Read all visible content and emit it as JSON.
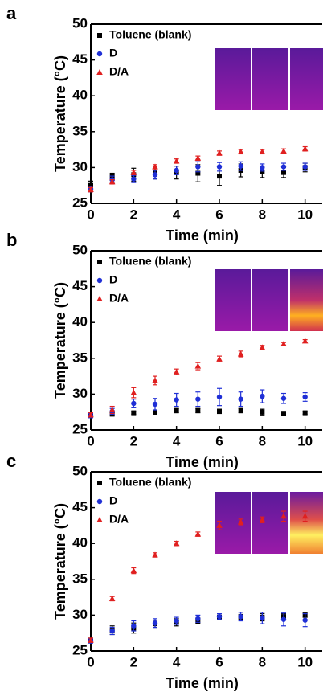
{
  "chart_data": [
    {
      "type": "scatter",
      "panel_label": "a",
      "x_label": "Time (min)",
      "y_label": "Temperature (°C)",
      "x": [
        0,
        1,
        2,
        3,
        4,
        5,
        6,
        7,
        8,
        9,
        10
      ],
      "xlim": [
        0,
        10.8
      ],
      "ylim": [
        25,
        50
      ],
      "xticks": [
        0,
        2,
        4,
        6,
        8,
        10
      ],
      "yticks": [
        25,
        30,
        35,
        40,
        45,
        50
      ],
      "grid": false,
      "legend": "upper left",
      "series": [
        {
          "name": "Toluene (blank)",
          "color": "#000000",
          "marker": "square",
          "values": [
            27.5,
            28.7,
            29.0,
            29.2,
            29.3,
            29.2,
            28.8,
            29.6,
            29.4,
            29.3,
            30.0
          ],
          "errors": [
            0.6,
            0.5,
            0.9,
            0.8,
            0.9,
            1.2,
            1.3,
            0.9,
            0.8,
            0.7,
            0.6
          ]
        },
        {
          "name": "D",
          "color": "#1f2fd6",
          "marker": "circle",
          "values": [
            27.0,
            28.3,
            28.4,
            29.0,
            29.6,
            30.1,
            30.1,
            30.2,
            30.0,
            30.1,
            30.1
          ],
          "errors": [
            0.4,
            0.5,
            0.5,
            0.6,
            0.6,
            0.7,
            0.6,
            0.6,
            0.5,
            0.5,
            0.5
          ]
        },
        {
          "name": "D/A",
          "color": "#e02020",
          "marker": "triangle",
          "values": [
            26.9,
            28.0,
            29.3,
            30.1,
            30.9,
            31.3,
            32.0,
            32.2,
            32.2,
            32.3,
            32.6
          ],
          "errors": [
            0.3,
            0.3,
            0.3,
            0.3,
            0.3,
            0.3,
            0.3,
            0.3,
            0.3,
            0.3,
            0.3
          ]
        }
      ]
    },
    {
      "type": "scatter",
      "panel_label": "b",
      "x_label": "Time (min)",
      "y_label": "Temperature (°C)",
      "x": [
        0,
        1,
        2,
        3,
        4,
        5,
        6,
        7,
        8,
        9,
        10
      ],
      "xlim": [
        0,
        10.8
      ],
      "ylim": [
        25,
        50
      ],
      "xticks": [
        0,
        2,
        4,
        6,
        8,
        10
      ],
      "yticks": [
        25,
        30,
        35,
        40,
        45,
        50
      ],
      "grid": false,
      "legend": "upper left",
      "series": [
        {
          "name": "Toluene (blank)",
          "color": "#000000",
          "marker": "square",
          "values": [
            27.0,
            27.2,
            27.4,
            27.5,
            27.7,
            27.7,
            27.6,
            27.7,
            27.5,
            27.3,
            27.4
          ],
          "errors": [
            0.2,
            0.2,
            0.2,
            0.3,
            0.3,
            0.3,
            0.3,
            0.3,
            0.4,
            0.3,
            0.2
          ]
        },
        {
          "name": "D",
          "color": "#1f2fd6",
          "marker": "circle",
          "values": [
            27.0,
            27.6,
            28.7,
            28.6,
            29.2,
            29.3,
            29.6,
            29.3,
            29.7,
            29.4,
            29.6
          ],
          "errors": [
            0.3,
            0.4,
            0.6,
            0.8,
            0.9,
            1.0,
            1.2,
            1.0,
            0.9,
            0.7,
            0.6
          ]
        },
        {
          "name": "D/A",
          "color": "#e02020",
          "marker": "triangle",
          "values": [
            27.1,
            27.8,
            30.2,
            31.9,
            33.1,
            33.9,
            34.9,
            35.6,
            36.5,
            37.0,
            37.4
          ],
          "errors": [
            0.3,
            0.5,
            0.7,
            0.6,
            0.4,
            0.5,
            0.4,
            0.4,
            0.3,
            0.2,
            0.2
          ]
        }
      ]
    },
    {
      "type": "scatter",
      "panel_label": "c",
      "x_label": "Time (min)",
      "y_label": "Temperature (°C)",
      "x": [
        0,
        1,
        2,
        3,
        4,
        5,
        6,
        7,
        8,
        9,
        10
      ],
      "xlim": [
        0,
        10.8
      ],
      "ylim": [
        25,
        50
      ],
      "xticks": [
        0,
        2,
        4,
        6,
        8,
        10
      ],
      "yticks": [
        25,
        30,
        35,
        40,
        45,
        50
      ],
      "grid": false,
      "legend": "upper left",
      "series": [
        {
          "name": "Toluene (blank)",
          "color": "#000000",
          "marker": "square",
          "values": [
            26.5,
            27.9,
            28.2,
            28.8,
            29.0,
            29.2,
            29.7,
            29.7,
            29.7,
            29.8,
            30.0
          ],
          "errors": [
            0.3,
            0.6,
            0.7,
            0.5,
            0.5,
            0.4,
            0.3,
            0.4,
            0.5,
            0.4,
            0.3
          ]
        },
        {
          "name": "D",
          "color": "#1f2fd6",
          "marker": "circle",
          "values": [
            26.4,
            27.8,
            28.5,
            28.9,
            29.2,
            29.5,
            29.8,
            29.8,
            29.6,
            29.4,
            29.3
          ],
          "errors": [
            0.3,
            0.5,
            0.7,
            0.6,
            0.5,
            0.5,
            0.4,
            0.6,
            0.8,
            0.9,
            0.9
          ]
        },
        {
          "name": "D/A",
          "color": "#e02020",
          "marker": "triangle",
          "values": [
            26.5,
            32.3,
            36.2,
            38.4,
            40.0,
            41.3,
            42.5,
            43.0,
            43.3,
            43.8,
            43.8
          ],
          "errors": [
            0.3,
            0.3,
            0.4,
            0.3,
            0.3,
            0.3,
            0.6,
            0.4,
            0.4,
            0.7,
            0.7
          ]
        }
      ]
    }
  ]
}
